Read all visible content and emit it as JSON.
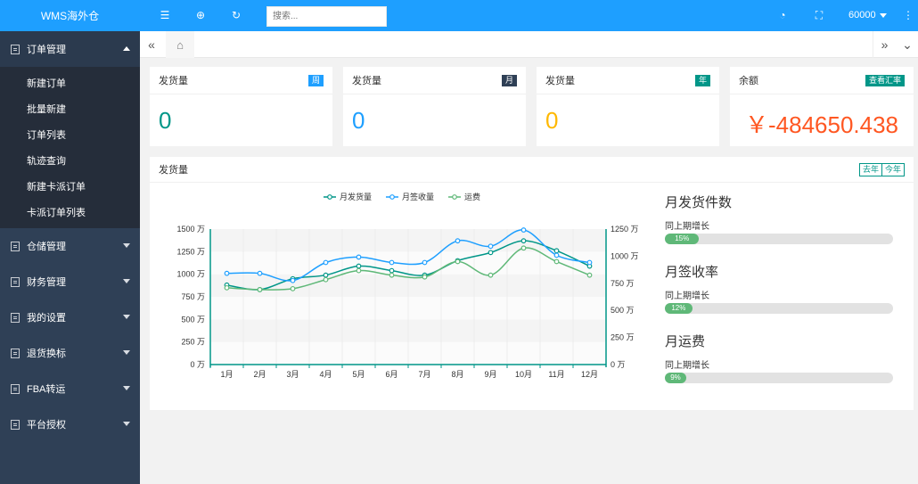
{
  "app": {
    "title": "WMS海外仓"
  },
  "sidebar": {
    "groups": [
      {
        "label": "订单管理",
        "items": [
          "新建订单",
          "批量新建",
          "订单列表",
          "轨迹查询",
          "新建卡派订单",
          "卡派订单列表"
        ]
      },
      {
        "label": "仓储管理"
      },
      {
        "label": "财务管理"
      },
      {
        "label": "我的设置"
      },
      {
        "label": "退货换标"
      },
      {
        "label": "FBA转运"
      },
      {
        "label": "平台授权"
      }
    ]
  },
  "topbar": {
    "icons": [
      "menu-toggle-icon",
      "globe-icon",
      "refresh-icon",
      "theme-icon",
      "fullscreen-icon",
      "more-icon"
    ],
    "search_placeholder": "搜索...",
    "user": "60000"
  },
  "tabs": {
    "home_icon": "home-icon"
  },
  "cards": [
    {
      "title": "发货量",
      "badge": "周",
      "badge_color": "#1e9fff",
      "value": "0",
      "value_color": "#009688"
    },
    {
      "title": "发货量",
      "badge": "月",
      "badge_color": "#2f4056",
      "value": "0",
      "value_color": "#1e9fff"
    },
    {
      "title": "发货量",
      "badge": "年",
      "badge_color": "#009688",
      "value": "0",
      "value_color": "#ffb800"
    },
    {
      "title": "余额",
      "badge": "查看汇率",
      "badge_color": "#009688",
      "value": "￥-484650.438",
      "value_color": "#ff5722"
    }
  ],
  "chart_panel": {
    "title": "发货量",
    "year_buttons": [
      "去年",
      "今年"
    ]
  },
  "chart_data": {
    "type": "line",
    "categories": [
      "1月",
      "2月",
      "3月",
      "4月",
      "5月",
      "6月",
      "7月",
      "8月",
      "9月",
      "10月",
      "11月",
      "12月"
    ],
    "y_left": {
      "ticks": [
        "0 万",
        "250 万",
        "500 万",
        "750 万",
        "1000 万",
        "1250 万",
        "1500 万"
      ],
      "range": [
        0,
        1500
      ]
    },
    "y_right": {
      "ticks": [
        "0 万",
        "250 万",
        "500 万",
        "750 万",
        "1000 万",
        "1250 万"
      ],
      "range": [
        0,
        1250
      ]
    },
    "legend_position": "top-center",
    "series": [
      {
        "name": "月发货量",
        "color": "#009688",
        "axis": "left",
        "values": [
          880,
          830,
          950,
          990,
          1090,
          1040,
          990,
          1150,
          1240,
          1370,
          1260,
          1090
        ]
      },
      {
        "name": "月签收量",
        "color": "#1e9fff",
        "axis": "left",
        "values": [
          1010,
          1010,
          930,
          1130,
          1190,
          1130,
          1130,
          1370,
          1310,
          1490,
          1210,
          1130
        ]
      },
      {
        "name": "运费",
        "color": "#5fb878",
        "axis": "left",
        "values": [
          850,
          830,
          840,
          940,
          1040,
          990,
          970,
          1140,
          990,
          1290,
          1140,
          990
        ]
      }
    ]
  },
  "stats": [
    {
      "title": "月发货件数",
      "sub": "同上期增长",
      "percent": 15,
      "label": "15%"
    },
    {
      "title": "月签收率",
      "sub": "同上期增长",
      "percent": 12,
      "label": "12%"
    },
    {
      "title": "月运费",
      "sub": "同上期增长",
      "percent": 9,
      "label": "9%"
    }
  ]
}
